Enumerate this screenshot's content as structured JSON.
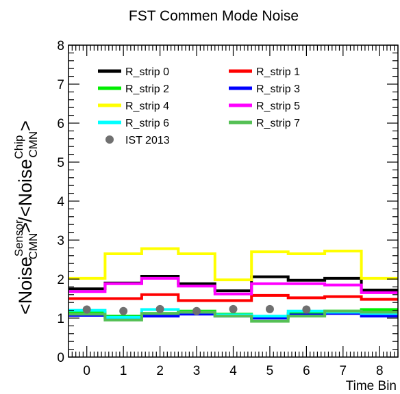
{
  "chart_data": {
    "type": "line",
    "title": "FST Commen Mode Noise",
    "xlabel": "Time Bin",
    "ylabel": {
      "prefix": "<Noise",
      "sup1": "Sensor",
      "sub1": "CMN",
      "middle": ">/<Noise",
      "sup2": "Chip",
      "sub2": "CMN",
      "suffix": ">"
    },
    "xlim": [
      -0.5,
      8.5
    ],
    "ylim": [
      0,
      8
    ],
    "xticks": [
      "0",
      "1",
      "2",
      "3",
      "4",
      "5",
      "6",
      "7",
      "8"
    ],
    "yticks": [
      "0",
      "1",
      "2",
      "3",
      "4",
      "5",
      "6",
      "7",
      "8"
    ],
    "x": [
      0,
      1,
      2,
      3,
      4,
      5,
      6,
      7,
      8
    ],
    "legend_position": "top-left",
    "series": [
      {
        "name": "R_strip 0",
        "color": "#000000",
        "style": "step",
        "values": [
          1.75,
          1.9,
          2.07,
          1.88,
          1.7,
          2.06,
          1.97,
          2.02,
          1.72
        ]
      },
      {
        "name": "R_strip 1",
        "color": "#ff0000",
        "style": "step",
        "values": [
          1.5,
          1.5,
          1.6,
          1.45,
          1.45,
          1.58,
          1.52,
          1.55,
          1.48
        ]
      },
      {
        "name": "R_strip 2",
        "color": "#00ee00",
        "style": "step",
        "values": [
          1.15,
          1.05,
          1.12,
          1.18,
          1.1,
          1.02,
          1.12,
          1.18,
          1.22
        ]
      },
      {
        "name": "R_strip 3",
        "color": "#0000ff",
        "style": "step",
        "values": [
          1.07,
          1.02,
          1.05,
          1.1,
          1.05,
          1.0,
          1.08,
          1.12,
          1.05
        ]
      },
      {
        "name": "R_strip 4",
        "color": "#ffff00",
        "style": "step",
        "values": [
          2.02,
          2.65,
          2.78,
          2.65,
          1.98,
          2.7,
          2.65,
          2.72,
          2.02
        ]
      },
      {
        "name": "R_strip 5",
        "color": "#ff00ff",
        "style": "step",
        "values": [
          1.68,
          1.88,
          2.02,
          1.82,
          1.62,
          1.88,
          1.88,
          1.85,
          1.65
        ]
      },
      {
        "name": "R_strip 6",
        "color": "#00ffff",
        "style": "step",
        "values": [
          1.2,
          1.02,
          1.22,
          1.15,
          1.08,
          1.05,
          1.18,
          1.15,
          1.12
        ]
      },
      {
        "name": "R_strip 7",
        "color": "#55c055",
        "style": "step",
        "values": [
          1.1,
          0.95,
          1.12,
          1.15,
          1.05,
          0.92,
          1.05,
          1.18,
          1.15
        ]
      },
      {
        "name": "IST 2013",
        "color": "#707070",
        "style": "marker",
        "x": [
          0,
          1,
          2,
          3,
          4,
          5,
          6
        ],
        "values": [
          1.22,
          1.18,
          1.23,
          1.18,
          1.23,
          1.23,
          1.22
        ]
      }
    ]
  }
}
